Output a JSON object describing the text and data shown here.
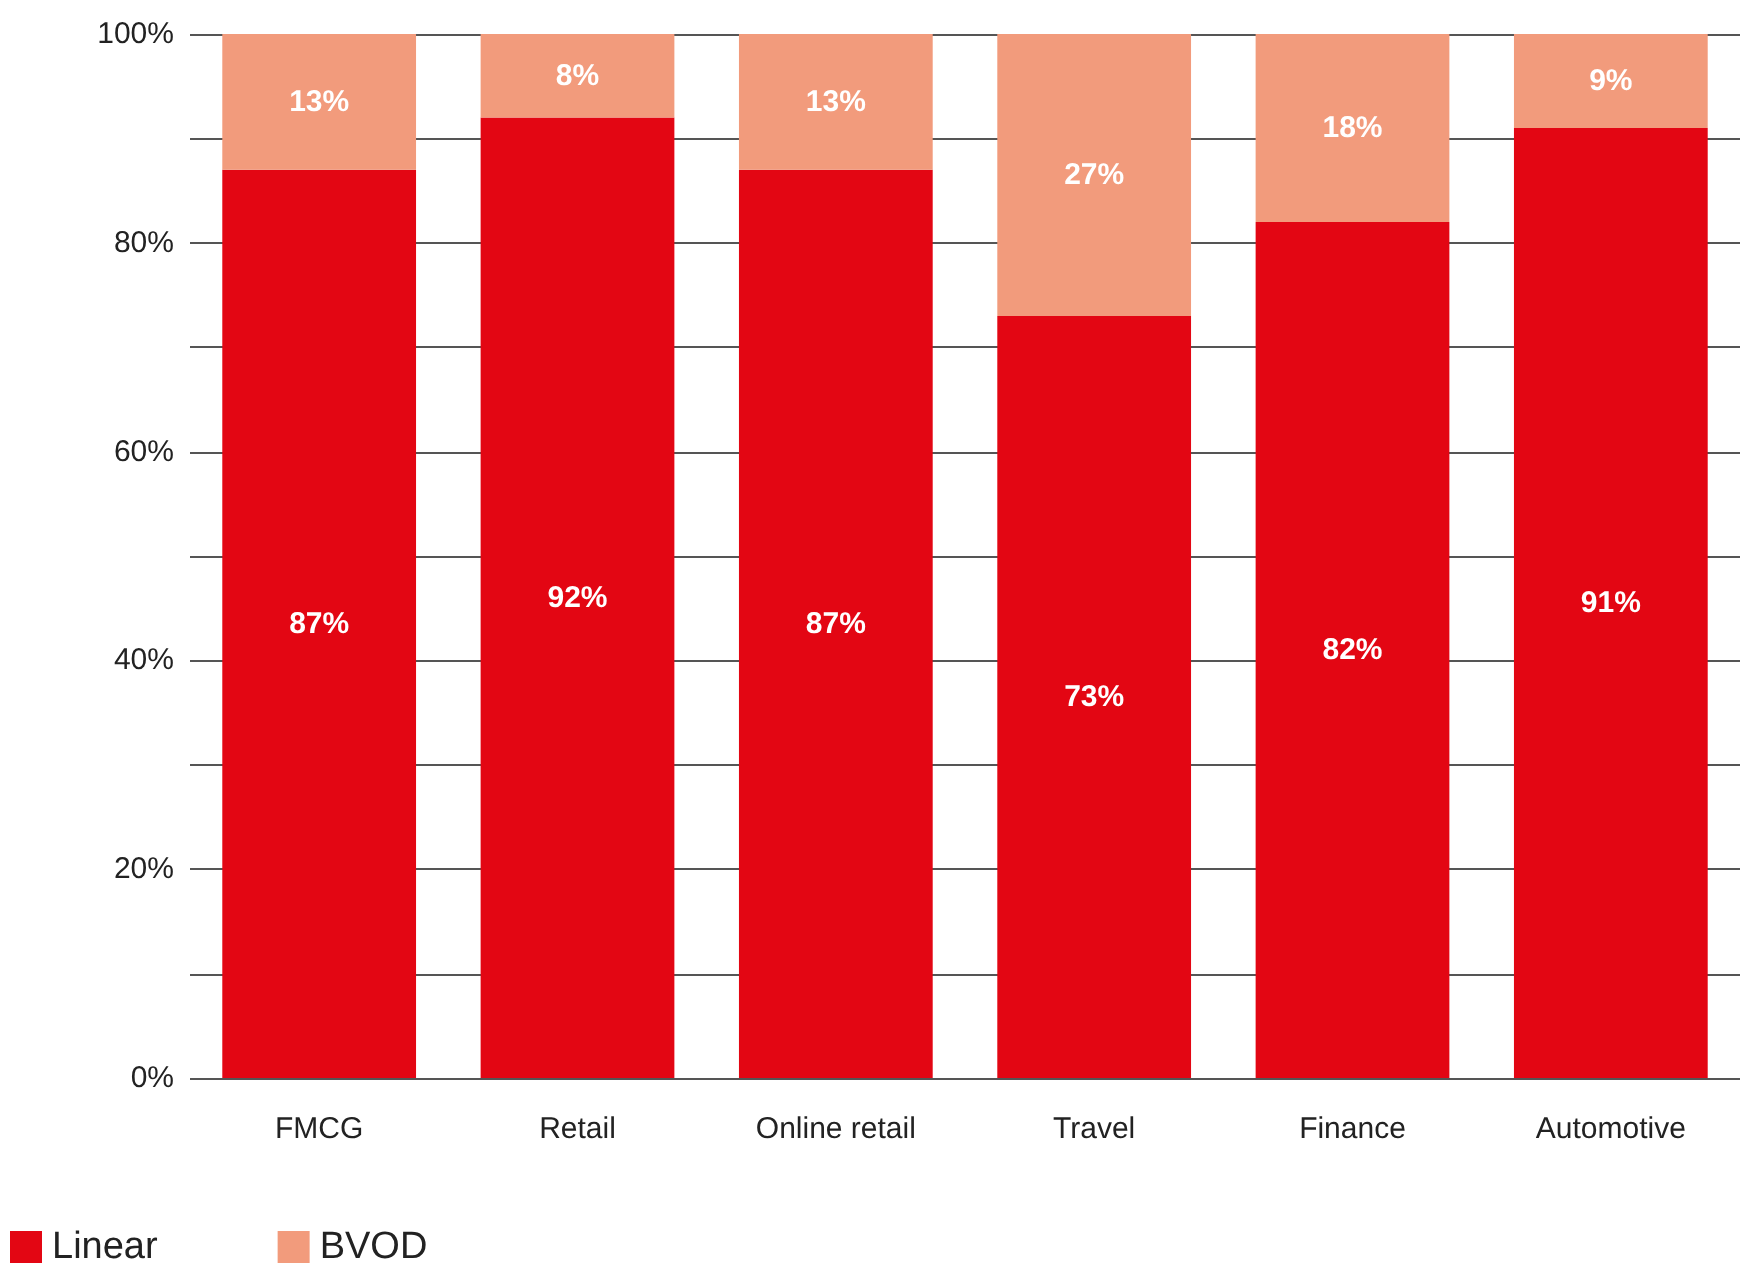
{
  "chart_data": {
    "type": "bar",
    "stacked": true,
    "categories": [
      "FMCG",
      "Retail",
      "Online retail",
      "Travel",
      "Finance",
      "Automotive"
    ],
    "series": [
      {
        "name": "Linear",
        "color": "#e30613",
        "values": [
          87,
          92,
          87,
          73,
          82,
          91
        ],
        "value_labels": [
          "87%",
          "92%",
          "87%",
          "73%",
          "82%",
          "91%"
        ]
      },
      {
        "name": "BVOD",
        "color": "#f29b7c",
        "values": [
          13,
          8,
          13,
          27,
          18,
          9
        ],
        "value_labels": [
          "13%",
          "8%",
          "13%",
          "27%",
          "18%",
          "9%"
        ]
      }
    ],
    "ylim": [
      0,
      100
    ],
    "yticks": [
      {
        "value": 0,
        "label": "0%"
      },
      {
        "value": 10,
        "label": null
      },
      {
        "value": 20,
        "label": "20%"
      },
      {
        "value": 30,
        "label": null
      },
      {
        "value": 40,
        "label": "40%"
      },
      {
        "value": 50,
        "label": null
      },
      {
        "value": 60,
        "label": "60%"
      },
      {
        "value": 70,
        "label": null
      },
      {
        "value": 80,
        "label": "80%"
      },
      {
        "value": 90,
        "label": null
      },
      {
        "value": 100,
        "label": "100%"
      }
    ],
    "grid": "y",
    "legend": "bottom left"
  }
}
